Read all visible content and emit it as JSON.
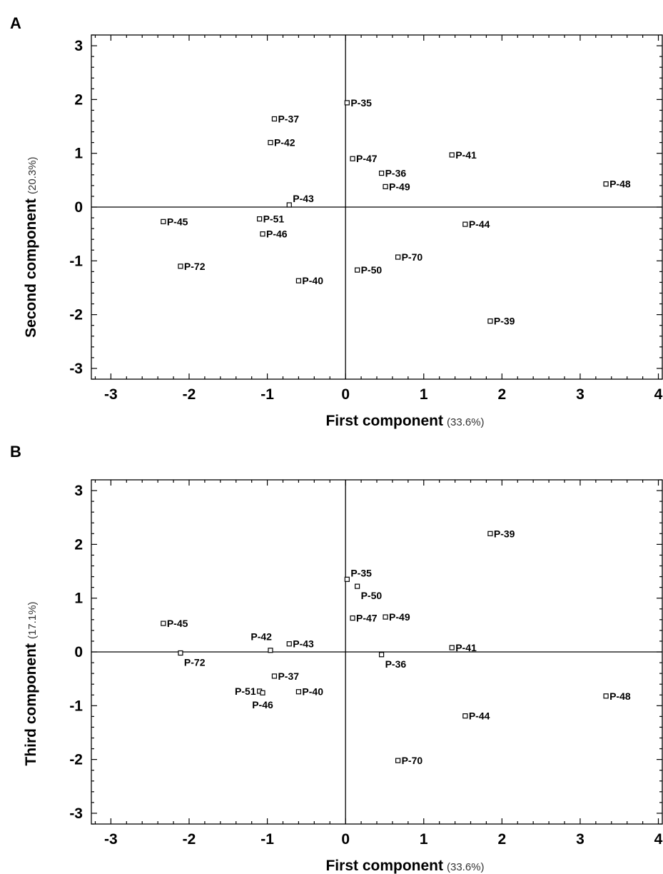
{
  "chart_data": [
    {
      "panel": "A",
      "type": "scatter",
      "xlabel": "First component",
      "xlabel_pct": "(33.6%)",
      "ylabel": "Second component",
      "ylabel_pct": "(20.3%)",
      "xlim": [
        -3.25,
        4.05
      ],
      "ylim": [
        -3.2,
        3.2
      ],
      "xticks": [
        -3,
        -2,
        -1,
        0,
        1,
        2,
        3,
        4
      ],
      "yticks": [
        -3,
        -2,
        -1,
        0,
        1,
        2,
        3
      ],
      "points": [
        {
          "label": "P-35",
          "x": 0.02,
          "y": 1.94,
          "pos": "right"
        },
        {
          "label": "P-37",
          "x": -0.91,
          "y": 1.64,
          "pos": "right"
        },
        {
          "label": "P-42",
          "x": -0.96,
          "y": 1.2,
          "pos": "right"
        },
        {
          "label": "P-47",
          "x": 0.09,
          "y": 0.9,
          "pos": "right"
        },
        {
          "label": "P-41",
          "x": 1.36,
          "y": 0.97,
          "pos": "right"
        },
        {
          "label": "P-36",
          "x": 0.46,
          "y": 0.63,
          "pos": "right"
        },
        {
          "label": "P-49",
          "x": 0.51,
          "y": 0.38,
          "pos": "right"
        },
        {
          "label": "P-48",
          "x": 3.33,
          "y": 0.43,
          "pos": "right"
        },
        {
          "label": "P-43",
          "x": -0.72,
          "y": 0.04,
          "pos": "right-up"
        },
        {
          "label": "P-45",
          "x": -2.33,
          "y": -0.27,
          "pos": "right"
        },
        {
          "label": "P-51",
          "x": -1.1,
          "y": -0.22,
          "pos": "right"
        },
        {
          "label": "P-46",
          "x": -1.06,
          "y": -0.5,
          "pos": "right"
        },
        {
          "label": "P-44",
          "x": 1.53,
          "y": -0.32,
          "pos": "right"
        },
        {
          "label": "P-72",
          "x": -2.11,
          "y": -1.1,
          "pos": "right"
        },
        {
          "label": "P-70",
          "x": 0.67,
          "y": -0.93,
          "pos": "right"
        },
        {
          "label": "P-50",
          "x": 0.15,
          "y": -1.17,
          "pos": "right"
        },
        {
          "label": "P-40",
          "x": -0.6,
          "y": -1.37,
          "pos": "right"
        },
        {
          "label": "P-39",
          "x": 1.85,
          "y": -2.12,
          "pos": "right"
        }
      ]
    },
    {
      "panel": "B",
      "type": "scatter",
      "xlabel": "First component",
      "xlabel_pct": "(33.6%)",
      "ylabel": "Third component",
      "ylabel_pct": "(17.1%)",
      "xlim": [
        -3.25,
        4.05
      ],
      "ylim": [
        -3.2,
        3.2
      ],
      "xticks": [
        -3,
        -2,
        -1,
        0,
        1,
        2,
        3,
        4
      ],
      "yticks": [
        -3,
        -2,
        -1,
        0,
        1,
        2,
        3
      ],
      "points": [
        {
          "label": "P-39",
          "x": 1.85,
          "y": 2.2,
          "pos": "right"
        },
        {
          "label": "P-35",
          "x": 0.02,
          "y": 1.35,
          "pos": "right-up"
        },
        {
          "label": "P-50",
          "x": 0.15,
          "y": 1.22,
          "pos": "right-down"
        },
        {
          "label": "P-47",
          "x": 0.09,
          "y": 0.63,
          "pos": "right"
        },
        {
          "label": "P-49",
          "x": 0.51,
          "y": 0.65,
          "pos": "right"
        },
        {
          "label": "P-45",
          "x": -2.33,
          "y": 0.53,
          "pos": "right"
        },
        {
          "label": "P-42",
          "x": -0.96,
          "y": 0.03,
          "pos": "left-up"
        },
        {
          "label": "P-43",
          "x": -0.72,
          "y": 0.15,
          "pos": "right"
        },
        {
          "label": "P-72",
          "x": -2.11,
          "y": -0.02,
          "pos": "right-down"
        },
        {
          "label": "P-41",
          "x": 1.36,
          "y": 0.08,
          "pos": "right"
        },
        {
          "label": "P-36",
          "x": 0.46,
          "y": -0.05,
          "pos": "right-down"
        },
        {
          "label": "P-37",
          "x": -0.91,
          "y": -0.45,
          "pos": "right"
        },
        {
          "label": "P-51",
          "x": -1.1,
          "y": -0.73,
          "pos": "left"
        },
        {
          "label": "P-46",
          "x": -1.06,
          "y": -0.76,
          "pos": "below"
        },
        {
          "label": "P-40",
          "x": -0.6,
          "y": -0.74,
          "pos": "right"
        },
        {
          "label": "P-48",
          "x": 3.33,
          "y": -0.82,
          "pos": "right"
        },
        {
          "label": "P-44",
          "x": 1.53,
          "y": -1.19,
          "pos": "right"
        },
        {
          "label": "P-70",
          "x": 0.67,
          "y": -2.02,
          "pos": "right"
        }
      ]
    }
  ]
}
